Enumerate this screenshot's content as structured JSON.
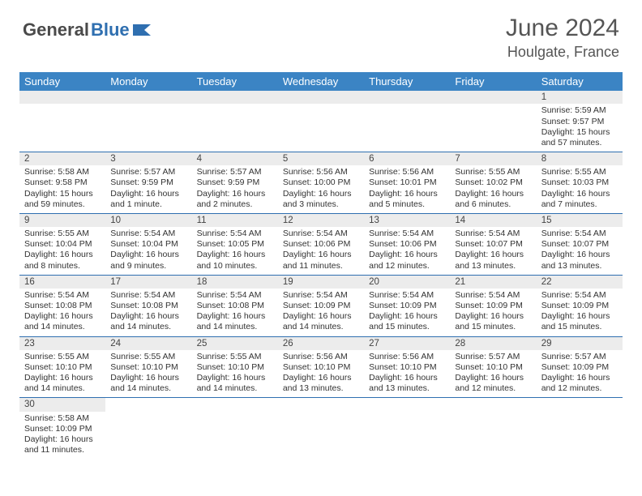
{
  "brand": {
    "text1": "General",
    "text2": "Blue"
  },
  "title": "June 2024",
  "location": "Houlgate, France",
  "weekdays": [
    "Sunday",
    "Monday",
    "Tuesday",
    "Wednesday",
    "Thursday",
    "Friday",
    "Saturday"
  ],
  "colors": {
    "header_bg": "#3b84c4",
    "daynum_bg": "#ececec",
    "rule": "#2f6fb0",
    "text": "#333333",
    "title": "#555555"
  },
  "weeks": [
    [
      null,
      null,
      null,
      null,
      null,
      null,
      {
        "n": "1",
        "sr": "Sunrise: 5:59 AM",
        "ss": "Sunset: 9:57 PM",
        "d1": "Daylight: 15 hours",
        "d2": "and 57 minutes."
      }
    ],
    [
      {
        "n": "2",
        "sr": "Sunrise: 5:58 AM",
        "ss": "Sunset: 9:58 PM",
        "d1": "Daylight: 15 hours",
        "d2": "and 59 minutes."
      },
      {
        "n": "3",
        "sr": "Sunrise: 5:57 AM",
        "ss": "Sunset: 9:59 PM",
        "d1": "Daylight: 16 hours",
        "d2": "and 1 minute."
      },
      {
        "n": "4",
        "sr": "Sunrise: 5:57 AM",
        "ss": "Sunset: 9:59 PM",
        "d1": "Daylight: 16 hours",
        "d2": "and 2 minutes."
      },
      {
        "n": "5",
        "sr": "Sunrise: 5:56 AM",
        "ss": "Sunset: 10:00 PM",
        "d1": "Daylight: 16 hours",
        "d2": "and 3 minutes."
      },
      {
        "n": "6",
        "sr": "Sunrise: 5:56 AM",
        "ss": "Sunset: 10:01 PM",
        "d1": "Daylight: 16 hours",
        "d2": "and 5 minutes."
      },
      {
        "n": "7",
        "sr": "Sunrise: 5:55 AM",
        "ss": "Sunset: 10:02 PM",
        "d1": "Daylight: 16 hours",
        "d2": "and 6 minutes."
      },
      {
        "n": "8",
        "sr": "Sunrise: 5:55 AM",
        "ss": "Sunset: 10:03 PM",
        "d1": "Daylight: 16 hours",
        "d2": "and 7 minutes."
      }
    ],
    [
      {
        "n": "9",
        "sr": "Sunrise: 5:55 AM",
        "ss": "Sunset: 10:04 PM",
        "d1": "Daylight: 16 hours",
        "d2": "and 8 minutes."
      },
      {
        "n": "10",
        "sr": "Sunrise: 5:54 AM",
        "ss": "Sunset: 10:04 PM",
        "d1": "Daylight: 16 hours",
        "d2": "and 9 minutes."
      },
      {
        "n": "11",
        "sr": "Sunrise: 5:54 AM",
        "ss": "Sunset: 10:05 PM",
        "d1": "Daylight: 16 hours",
        "d2": "and 10 minutes."
      },
      {
        "n": "12",
        "sr": "Sunrise: 5:54 AM",
        "ss": "Sunset: 10:06 PM",
        "d1": "Daylight: 16 hours",
        "d2": "and 11 minutes."
      },
      {
        "n": "13",
        "sr": "Sunrise: 5:54 AM",
        "ss": "Sunset: 10:06 PM",
        "d1": "Daylight: 16 hours",
        "d2": "and 12 minutes."
      },
      {
        "n": "14",
        "sr": "Sunrise: 5:54 AM",
        "ss": "Sunset: 10:07 PM",
        "d1": "Daylight: 16 hours",
        "d2": "and 13 minutes."
      },
      {
        "n": "15",
        "sr": "Sunrise: 5:54 AM",
        "ss": "Sunset: 10:07 PM",
        "d1": "Daylight: 16 hours",
        "d2": "and 13 minutes."
      }
    ],
    [
      {
        "n": "16",
        "sr": "Sunrise: 5:54 AM",
        "ss": "Sunset: 10:08 PM",
        "d1": "Daylight: 16 hours",
        "d2": "and 14 minutes."
      },
      {
        "n": "17",
        "sr": "Sunrise: 5:54 AM",
        "ss": "Sunset: 10:08 PM",
        "d1": "Daylight: 16 hours",
        "d2": "and 14 minutes."
      },
      {
        "n": "18",
        "sr": "Sunrise: 5:54 AM",
        "ss": "Sunset: 10:08 PM",
        "d1": "Daylight: 16 hours",
        "d2": "and 14 minutes."
      },
      {
        "n": "19",
        "sr": "Sunrise: 5:54 AM",
        "ss": "Sunset: 10:09 PM",
        "d1": "Daylight: 16 hours",
        "d2": "and 14 minutes."
      },
      {
        "n": "20",
        "sr": "Sunrise: 5:54 AM",
        "ss": "Sunset: 10:09 PM",
        "d1": "Daylight: 16 hours",
        "d2": "and 15 minutes."
      },
      {
        "n": "21",
        "sr": "Sunrise: 5:54 AM",
        "ss": "Sunset: 10:09 PM",
        "d1": "Daylight: 16 hours",
        "d2": "and 15 minutes."
      },
      {
        "n": "22",
        "sr": "Sunrise: 5:54 AM",
        "ss": "Sunset: 10:09 PM",
        "d1": "Daylight: 16 hours",
        "d2": "and 15 minutes."
      }
    ],
    [
      {
        "n": "23",
        "sr": "Sunrise: 5:55 AM",
        "ss": "Sunset: 10:10 PM",
        "d1": "Daylight: 16 hours",
        "d2": "and 14 minutes."
      },
      {
        "n": "24",
        "sr": "Sunrise: 5:55 AM",
        "ss": "Sunset: 10:10 PM",
        "d1": "Daylight: 16 hours",
        "d2": "and 14 minutes."
      },
      {
        "n": "25",
        "sr": "Sunrise: 5:55 AM",
        "ss": "Sunset: 10:10 PM",
        "d1": "Daylight: 16 hours",
        "d2": "and 14 minutes."
      },
      {
        "n": "26",
        "sr": "Sunrise: 5:56 AM",
        "ss": "Sunset: 10:10 PM",
        "d1": "Daylight: 16 hours",
        "d2": "and 13 minutes."
      },
      {
        "n": "27",
        "sr": "Sunrise: 5:56 AM",
        "ss": "Sunset: 10:10 PM",
        "d1": "Daylight: 16 hours",
        "d2": "and 13 minutes."
      },
      {
        "n": "28",
        "sr": "Sunrise: 5:57 AM",
        "ss": "Sunset: 10:10 PM",
        "d1": "Daylight: 16 hours",
        "d2": "and 12 minutes."
      },
      {
        "n": "29",
        "sr": "Sunrise: 5:57 AM",
        "ss": "Sunset: 10:09 PM",
        "d1": "Daylight: 16 hours",
        "d2": "and 12 minutes."
      }
    ],
    [
      {
        "n": "30",
        "sr": "Sunrise: 5:58 AM",
        "ss": "Sunset: 10:09 PM",
        "d1": "Daylight: 16 hours",
        "d2": "and 11 minutes."
      },
      null,
      null,
      null,
      null,
      null,
      null
    ]
  ]
}
